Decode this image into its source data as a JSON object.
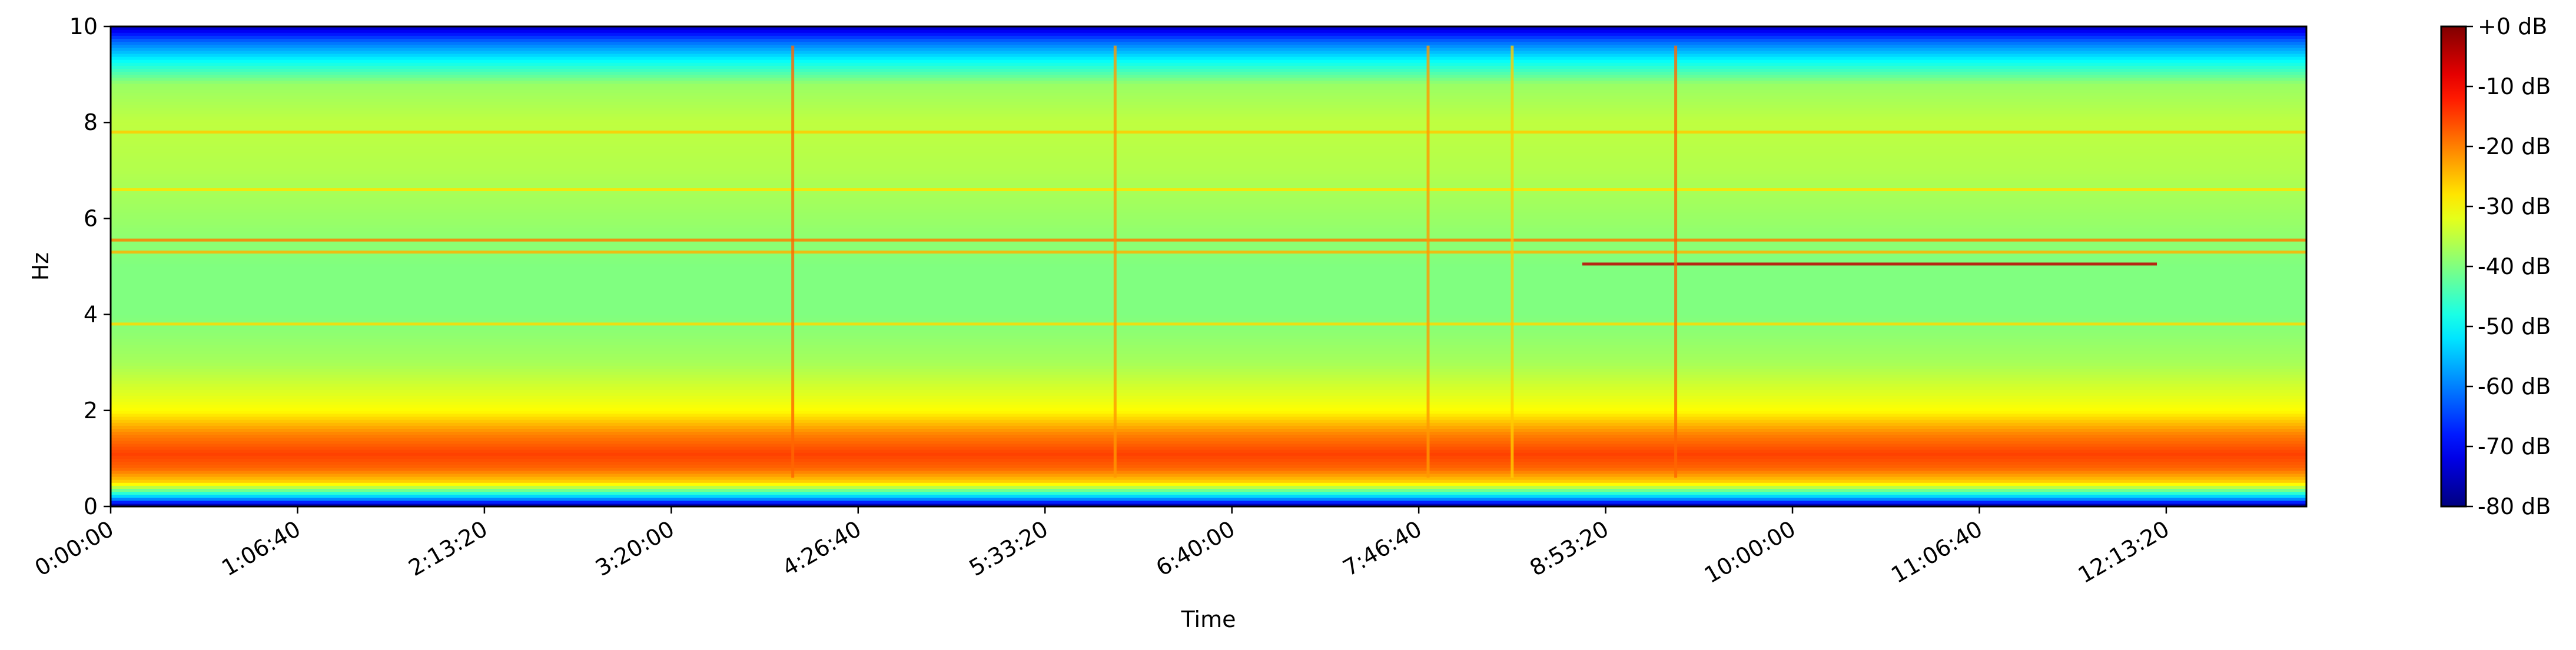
{
  "chart_data": {
    "type": "heatmap",
    "subtype": "spectrogram",
    "title": "",
    "xlabel": "Time",
    "ylabel": "Hz",
    "x_unit": "seconds",
    "xlim": [
      0,
      47000
    ],
    "ylim": [
      0,
      10
    ],
    "x_ticks": [
      0,
      4000,
      8000,
      12000,
      16000,
      20000,
      24000,
      28000,
      32000,
      36000,
      40000,
      44000
    ],
    "x_tick_labels": [
      "0:00:00",
      "1:06:40",
      "2:13:20",
      "3:20:00",
      "4:26:40",
      "5:33:20",
      "6:40:00",
      "7:46:40",
      "8:53:20",
      "10:00:00",
      "11:06:40",
      "12:13:20"
    ],
    "y_ticks": [
      0,
      2,
      4,
      6,
      8,
      10
    ],
    "y_tick_labels": [
      "0",
      "2",
      "4",
      "6",
      "8",
      "10"
    ],
    "colormap": "jet",
    "colorbar": {
      "range_db": [
        -80,
        0
      ],
      "ticks": [
        0,
        -10,
        -20,
        -30,
        -40,
        -50,
        -60,
        -70,
        -80
      ],
      "tick_labels": [
        "+0 dB",
        "-10 dB",
        "-20 dB",
        "-30 dB",
        "-40 dB",
        "-50 dB",
        "-60 dB",
        "-70 dB",
        "-80 dB"
      ]
    },
    "frequency_profile_db": [
      {
        "hz": 0.0,
        "db": -80
      },
      {
        "hz": 0.15,
        "db": -60
      },
      {
        "hz": 0.3,
        "db": -45
      },
      {
        "hz": 0.5,
        "db": -27
      },
      {
        "hz": 0.8,
        "db": -18
      },
      {
        "hz": 1.1,
        "db": -15
      },
      {
        "hz": 1.5,
        "db": -20
      },
      {
        "hz": 2.0,
        "db": -30
      },
      {
        "hz": 3.0,
        "db": -37
      },
      {
        "hz": 4.0,
        "db": -40
      },
      {
        "hz": 5.0,
        "db": -40
      },
      {
        "hz": 6.0,
        "db": -38
      },
      {
        "hz": 7.0,
        "db": -36
      },
      {
        "hz": 8.0,
        "db": -35
      },
      {
        "hz": 8.8,
        "db": -38
      },
      {
        "hz": 9.3,
        "db": -50
      },
      {
        "hz": 9.7,
        "db": -62
      },
      {
        "hz": 10.0,
        "db": -75
      }
    ],
    "horizontal_lines": [
      {
        "hz": 7.8,
        "t_start": 0,
        "t_end": 47000,
        "db": -26
      },
      {
        "hz": 6.6,
        "t_start": 0,
        "t_end": 47000,
        "db": -28
      },
      {
        "hz": 5.55,
        "t_start": 0,
        "t_end": 47000,
        "db": -20
      },
      {
        "hz": 5.3,
        "t_start": 0,
        "t_end": 47000,
        "db": -24
      },
      {
        "hz": 3.8,
        "t_start": 0,
        "t_end": 47000,
        "db": -27
      },
      {
        "hz": 5.05,
        "t_start": 31500,
        "t_end": 43800,
        "db": -5
      }
    ],
    "vertical_events": [
      {
        "t": 14600,
        "db": -18
      },
      {
        "t": 21500,
        "db": -22
      },
      {
        "t": 28200,
        "db": -22
      },
      {
        "t": 30000,
        "db": -26
      },
      {
        "t": 33500,
        "db": -18
      }
    ]
  }
}
